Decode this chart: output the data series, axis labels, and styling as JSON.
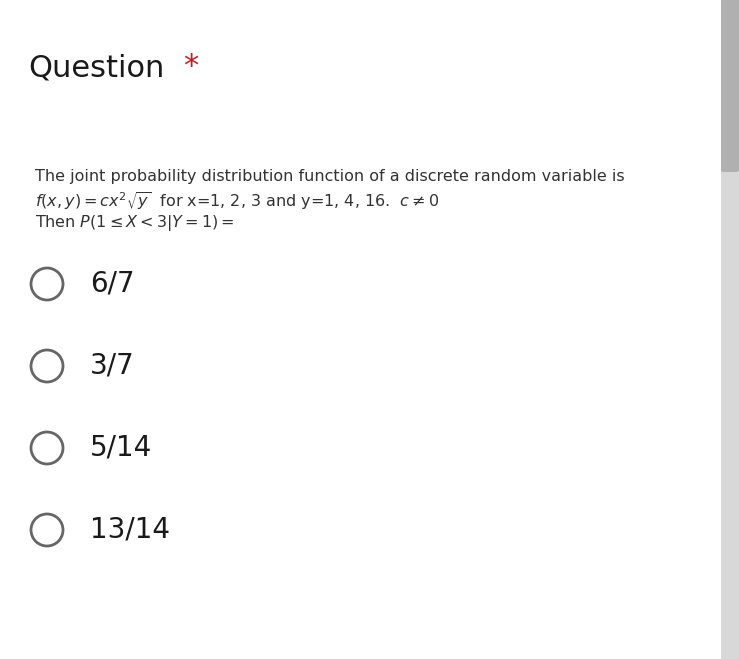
{
  "title": "Question",
  "star": "*",
  "bg_color": "#f5f5f5",
  "content_bg": "#ffffff",
  "question_line1": "The joint probability distribution function of a discrete random variable is",
  "question_line2": "$f(x, y) = cx^2\\sqrt{y}$  for x=1, 2, 3 and y=1, 4, 16.  $c \\neq 0$",
  "question_line3": "Then $P(1 \\leq X < 3|Y = 1) =$",
  "options": [
    "6/7",
    "3/7",
    "5/14",
    "13/14"
  ],
  "title_fontsize": 22,
  "option_fontsize": 20,
  "question_fontsize": 11.5,
  "title_color": "#1a1a1a",
  "star_color": "#bb2222",
  "option_color": "#1a1a1a",
  "question_color": "#333333",
  "circle_edgecolor": "#666666",
  "circle_linewidth": 2.0,
  "scrollbar_bg": "#d8d8d8",
  "scrollbar_handle": "#b0b0b0"
}
